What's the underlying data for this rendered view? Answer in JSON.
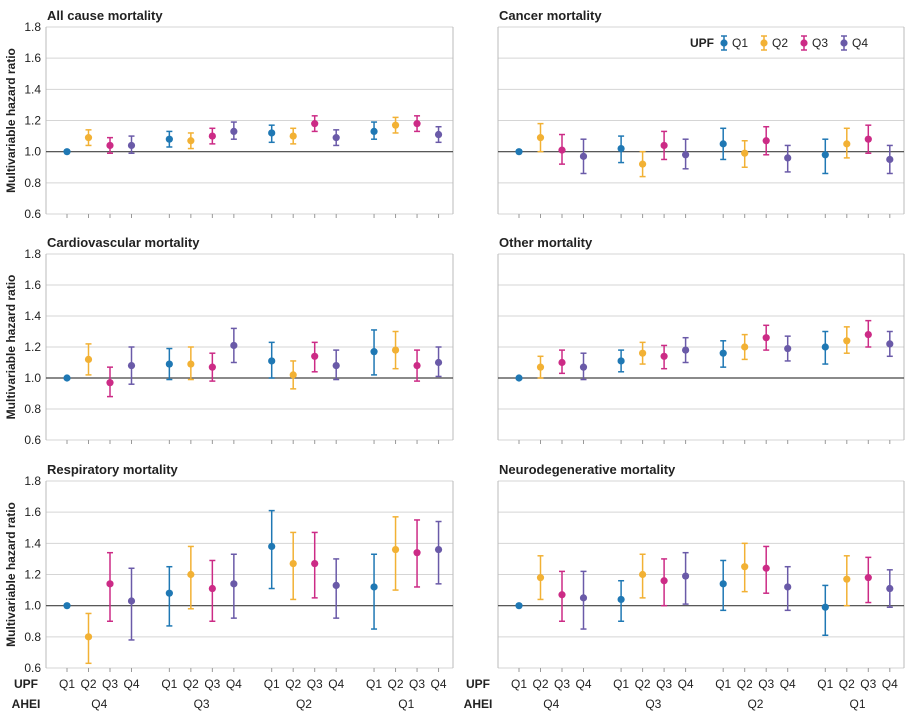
{
  "figure": {
    "ylabel": "Multivariable hazard ratio",
    "upf_label": "UPF",
    "ahei_label": "AHEI",
    "upf_ticks": [
      "Q1",
      "Q2",
      "Q3",
      "Q4"
    ],
    "ahei_groups": [
      "Q4",
      "Q3",
      "Q2",
      "Q1"
    ],
    "yticks": [
      "0.6",
      "0.8",
      "1.0",
      "1.2",
      "1.4",
      "1.6",
      "1.8"
    ]
  },
  "legend": {
    "title": "UPF",
    "entries": [
      "Q1",
      "Q2",
      "Q3",
      "Q4"
    ]
  },
  "colors": {
    "Q1": "#1f78b4",
    "Q2": "#f2b134",
    "Q3": "#cc2b86",
    "Q4": "#6a5aa8",
    "grid": "#d5d5d5",
    "refline": "#444444",
    "text": "#222222"
  },
  "chart_data": [
    {
      "type": "scatter",
      "title": "All cause mortality",
      "ylim": [
        0.6,
        1.8
      ],
      "reference_line": 1.0,
      "estimates": [
        1.0,
        1.09,
        1.04,
        1.04,
        1.08,
        1.07,
        1.1,
        1.13,
        1.12,
        1.1,
        1.18,
        1.09,
        1.13,
        1.17,
        1.18,
        1.11
      ],
      "lower": [
        1.0,
        1.04,
        0.99,
        0.99,
        1.03,
        1.02,
        1.05,
        1.08,
        1.06,
        1.05,
        1.13,
        1.04,
        1.08,
        1.12,
        1.13,
        1.06
      ],
      "upper": [
        1.0,
        1.14,
        1.09,
        1.1,
        1.13,
        1.12,
        1.15,
        1.19,
        1.17,
        1.15,
        1.23,
        1.14,
        1.19,
        1.22,
        1.23,
        1.16
      ]
    },
    {
      "type": "scatter",
      "title": "Cancer mortality",
      "ylim": [
        0.6,
        1.8
      ],
      "reference_line": 1.0,
      "estimates": [
        1.0,
        1.09,
        1.01,
        0.97,
        1.02,
        0.92,
        1.04,
        0.98,
        1.05,
        0.99,
        1.07,
        0.96,
        0.98,
        1.05,
        1.08,
        0.95
      ],
      "lower": [
        1.0,
        1.0,
        0.92,
        0.86,
        0.93,
        0.84,
        0.95,
        0.89,
        0.95,
        0.9,
        0.98,
        0.87,
        0.86,
        0.96,
        0.99,
        0.86
      ],
      "upper": [
        1.0,
        1.18,
        1.11,
        1.08,
        1.1,
        1.0,
        1.13,
        1.08,
        1.15,
        1.07,
        1.16,
        1.04,
        1.08,
        1.15,
        1.17,
        1.04
      ]
    },
    {
      "type": "scatter",
      "title": "Cardiovascular mortality",
      "ylim": [
        0.6,
        1.8
      ],
      "reference_line": 1.0,
      "estimates": [
        1.0,
        1.12,
        0.97,
        1.08,
        1.09,
        1.09,
        1.07,
        1.21,
        1.11,
        1.02,
        1.14,
        1.08,
        1.17,
        1.18,
        1.08,
        1.1
      ],
      "lower": [
        1.0,
        1.02,
        0.88,
        0.96,
        0.99,
        0.99,
        0.98,
        1.1,
        1.0,
        0.93,
        1.04,
        0.99,
        1.02,
        1.06,
        0.98,
        1.01
      ],
      "upper": [
        1.0,
        1.22,
        1.07,
        1.2,
        1.19,
        1.2,
        1.16,
        1.32,
        1.23,
        1.11,
        1.23,
        1.18,
        1.31,
        1.3,
        1.18,
        1.2
      ]
    },
    {
      "type": "scatter",
      "title": "Other mortality",
      "ylim": [
        0.6,
        1.8
      ],
      "reference_line": 1.0,
      "estimates": [
        1.0,
        1.07,
        1.1,
        1.07,
        1.11,
        1.16,
        1.14,
        1.18,
        1.16,
        1.2,
        1.26,
        1.19,
        1.2,
        1.24,
        1.28,
        1.22
      ],
      "lower": [
        1.0,
        1.0,
        1.03,
        0.99,
        1.04,
        1.09,
        1.06,
        1.1,
        1.07,
        1.12,
        1.18,
        1.11,
        1.09,
        1.16,
        1.2,
        1.14
      ],
      "upper": [
        1.0,
        1.14,
        1.18,
        1.16,
        1.18,
        1.23,
        1.21,
        1.26,
        1.24,
        1.28,
        1.34,
        1.27,
        1.3,
        1.33,
        1.37,
        1.3
      ]
    },
    {
      "type": "scatter",
      "title": "Respiratory mortality",
      "ylim": [
        0.6,
        1.8
      ],
      "reference_line": 1.0,
      "estimates": [
        1.0,
        0.8,
        1.14,
        1.03,
        1.08,
        1.2,
        1.11,
        1.14,
        1.38,
        1.27,
        1.27,
        1.13,
        1.12,
        1.36,
        1.34,
        1.36
      ],
      "lower": [
        1.0,
        0.63,
        0.9,
        0.78,
        0.87,
        0.98,
        0.9,
        0.92,
        1.11,
        1.04,
        1.05,
        0.92,
        0.85,
        1.1,
        1.12,
        1.14
      ],
      "upper": [
        1.0,
        0.95,
        1.34,
        1.24,
        1.25,
        1.38,
        1.29,
        1.33,
        1.61,
        1.47,
        1.47,
        1.3,
        1.33,
        1.57,
        1.55,
        1.54
      ]
    },
    {
      "type": "scatter",
      "title": "Neurodegenerative mortality",
      "ylim": [
        0.6,
        1.8
      ],
      "reference_line": 1.0,
      "estimates": [
        1.0,
        1.18,
        1.07,
        1.05,
        1.04,
        1.2,
        1.16,
        1.19,
        1.14,
        1.25,
        1.24,
        1.12,
        0.99,
        1.17,
        1.18,
        1.11
      ],
      "lower": [
        1.0,
        1.04,
        0.9,
        0.85,
        0.9,
        1.05,
        1.0,
        1.01,
        0.97,
        1.09,
        1.08,
        0.97,
        0.81,
        1.0,
        1.02,
        0.99
      ],
      "upper": [
        1.0,
        1.32,
        1.22,
        1.22,
        1.16,
        1.33,
        1.3,
        1.34,
        1.29,
        1.4,
        1.38,
        1.25,
        1.13,
        1.32,
        1.31,
        1.23
      ]
    }
  ]
}
